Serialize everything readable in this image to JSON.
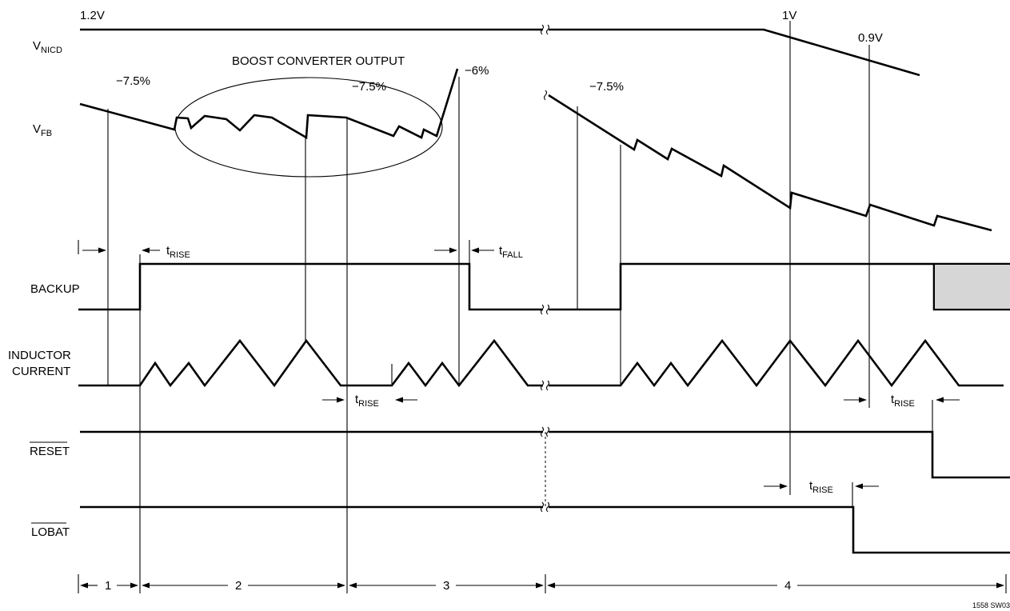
{
  "signals": {
    "vnicd": {
      "main": "V",
      "sub": "NICD"
    },
    "vfb": {
      "main": "V",
      "sub": "FB"
    },
    "backup": "BACKUP",
    "inductor_line1": "INDUCTOR",
    "inductor_line2": "CURRENT",
    "reset": "RESET",
    "lobat": "LOBAT"
  },
  "voltages": {
    "v_start": "1.2V",
    "v_1": "1V",
    "v_09": "0.9V"
  },
  "annotations": {
    "boost_output": "BOOST CONVERTER OUTPUT",
    "pct_75": "−7.5%",
    "pct_6": "−6%"
  },
  "timing": {
    "t": "t",
    "rise": "RISE",
    "fall": "FALL"
  },
  "phases": [
    "1",
    "2",
    "3",
    "4"
  ],
  "figure_id": "1558 SW03"
}
